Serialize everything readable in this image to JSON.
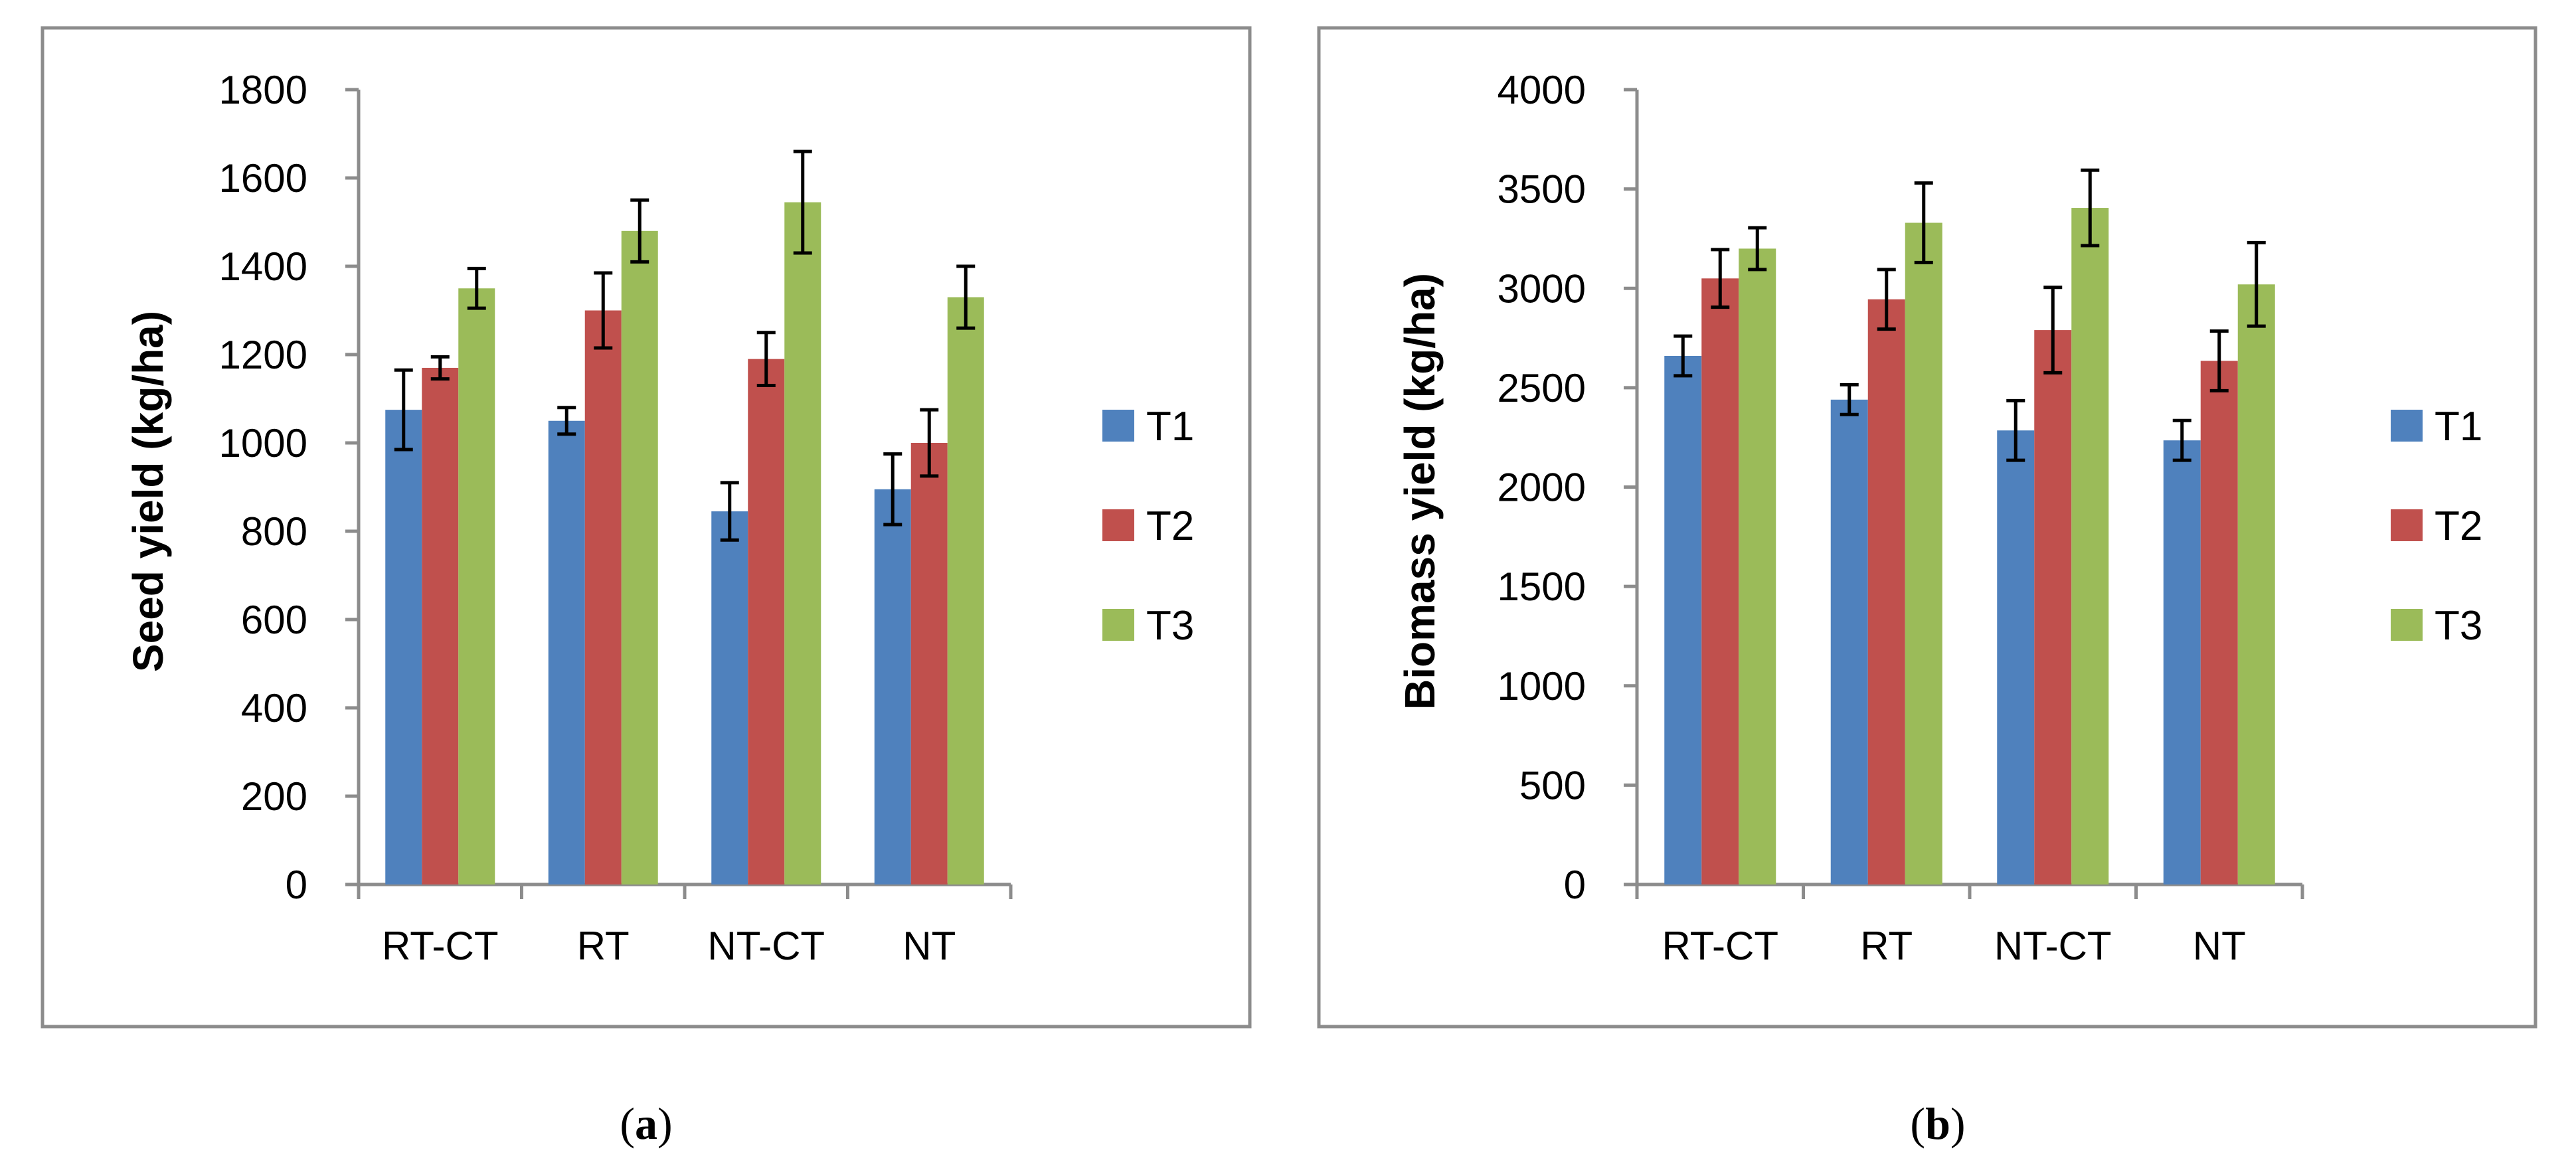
{
  "chart_data": [
    {
      "type": "bar",
      "caption": "a",
      "title": "",
      "xlabel": "",
      "ylabel": "Seed yield (kg/ha)",
      "categories": [
        "RT-CT",
        "RT",
        "NT-CT",
        "NT"
      ],
      "ylim": [
        0,
        1800
      ],
      "ytick_step": 200,
      "yticks": [
        "0",
        "200",
        "400",
        "600",
        "800",
        "1000",
        "1200",
        "1400",
        "1600",
        "1800"
      ],
      "series": [
        {
          "name": "T1",
          "color": "#4F81BD",
          "values": [
            1075,
            1050,
            845,
            895
          ],
          "errors": [
            90,
            30,
            65,
            80
          ]
        },
        {
          "name": "T2",
          "color": "#C0504D",
          "values": [
            1170,
            1300,
            1190,
            1000
          ],
          "errors": [
            25,
            85,
            60,
            75
          ]
        },
        {
          "name": "T3",
          "color": "#9BBB59",
          "values": [
            1350,
            1480,
            1545,
            1330
          ],
          "errors": [
            45,
            70,
            115,
            70
          ]
        }
      ]
    },
    {
      "type": "bar",
      "caption": "b",
      "title": "",
      "xlabel": "",
      "ylabel": "Biomass yield (kg/ha)",
      "categories": [
        "RT-CT",
        "RT",
        "NT-CT",
        "NT"
      ],
      "ylim": [
        0,
        4000
      ],
      "ytick_step": 500,
      "yticks": [
        "0",
        "500",
        "1000",
        "1500",
        "2000",
        "2500",
        "3000",
        "3500",
        "4000"
      ],
      "series": [
        {
          "name": "T1",
          "color": "#4F81BD",
          "values": [
            2660,
            2440,
            2285,
            2235
          ],
          "errors": [
            100,
            75,
            150,
            100
          ]
        },
        {
          "name": "T2",
          "color": "#C0504D",
          "values": [
            3050,
            2945,
            2790,
            2635
          ],
          "errors": [
            145,
            150,
            215,
            150
          ]
        },
        {
          "name": "T3",
          "color": "#9BBB59",
          "values": [
            3200,
            3330,
            3405,
            3020
          ],
          "errors": [
            105,
            200,
            190,
            210
          ]
        }
      ]
    }
  ]
}
